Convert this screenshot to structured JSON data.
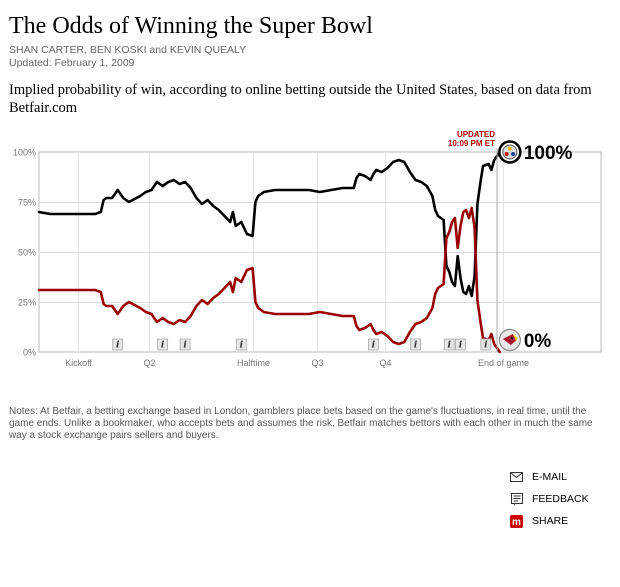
{
  "header": {
    "title": "The Odds of Winning the Super Bowl",
    "byline": "SHAN CARTER, BEN KOSKI and KEVIN QUEALY",
    "updated": "Updated: February 1, 2009",
    "description": "Implied probability of win, according to online betting outside the United States, based on data from Betfair.com"
  },
  "chart_data": {
    "type": "line",
    "y_ticks": [
      "0%",
      "25%",
      "50%",
      "75%",
      "100%"
    ],
    "ylim": [
      0,
      100
    ],
    "xlim": [
      0,
      100
    ],
    "x_labels": [
      {
        "label": "Kickoff",
        "x": 7
      },
      {
        "label": "Q2",
        "x": 19.5
      },
      {
        "label": "Halftime",
        "x": 38
      },
      {
        "label": "Q3",
        "x": 49.5
      },
      {
        "label": "Q4",
        "x": 61.5
      },
      {
        "label": "End of game",
        "x": 82.5
      }
    ],
    "grid": true,
    "update_note": {
      "line1": "UPDATED",
      "line2": "10:09 PM ET",
      "x": 81.5
    },
    "end_labels": {
      "top": "100%",
      "bottom": "0%"
    },
    "team_icons": {
      "top": "steelers-logo-icon",
      "bottom": "cardinals-logo-icon"
    },
    "info_markers": {
      "label": "i",
      "x": [
        14,
        22,
        26,
        36,
        59.5,
        67,
        73,
        75,
        79.5
      ]
    },
    "series": [
      {
        "color": "#000000",
        "points": [
          [
            0,
            70
          ],
          [
            2,
            69
          ],
          [
            4,
            69
          ],
          [
            6,
            69
          ],
          [
            8,
            69
          ],
          [
            10,
            69
          ],
          [
            11,
            70
          ],
          [
            11.5,
            76
          ],
          [
            12,
            77
          ],
          [
            13,
            77
          ],
          [
            14,
            81
          ],
          [
            15,
            77
          ],
          [
            16,
            75
          ],
          [
            18,
            78
          ],
          [
            19,
            80
          ],
          [
            20,
            81
          ],
          [
            21,
            85
          ],
          [
            22,
            83
          ],
          [
            23,
            85
          ],
          [
            24,
            86
          ],
          [
            25,
            84
          ],
          [
            26,
            85
          ],
          [
            27,
            82
          ],
          [
            28,
            77
          ],
          [
            29,
            74
          ],
          [
            30,
            76
          ],
          [
            31,
            73
          ],
          [
            32,
            71
          ],
          [
            33,
            68
          ],
          [
            34,
            65
          ],
          [
            34.5,
            70
          ],
          [
            35,
            63
          ],
          [
            36,
            65
          ],
          [
            37,
            59
          ],
          [
            38,
            58
          ],
          [
            38.5,
            75
          ],
          [
            39,
            78
          ],
          [
            40,
            80
          ],
          [
            42,
            81
          ],
          [
            44,
            81
          ],
          [
            46,
            81
          ],
          [
            48,
            81
          ],
          [
            50,
            80
          ],
          [
            52,
            81
          ],
          [
            54,
            82
          ],
          [
            56,
            82
          ],
          [
            56.5,
            87
          ],
          [
            57,
            89
          ],
          [
            58,
            88
          ],
          [
            59,
            86
          ],
          [
            59.5,
            89
          ],
          [
            60,
            91
          ],
          [
            61,
            90
          ],
          [
            62,
            92
          ],
          [
            63,
            95
          ],
          [
            64,
            96
          ],
          [
            65,
            95
          ],
          [
            66,
            90
          ],
          [
            67,
            86
          ],
          [
            68,
            85
          ],
          [
            69,
            83
          ],
          [
            70,
            78
          ],
          [
            70.5,
            71
          ],
          [
            71,
            68
          ],
          [
            72,
            66
          ],
          [
            72.5,
            43
          ],
          [
            73,
            40
          ],
          [
            73.5,
            35
          ],
          [
            74,
            33
          ],
          [
            74.5,
            48
          ],
          [
            75,
            37
          ],
          [
            75.5,
            30
          ],
          [
            76,
            29
          ],
          [
            76.5,
            33
          ],
          [
            77,
            28
          ],
          [
            77.5,
            38
          ],
          [
            78,
            74
          ],
          [
            78.5,
            84
          ],
          [
            79,
            93
          ],
          [
            80,
            94
          ],
          [
            80.5,
            91
          ],
          [
            81,
            96
          ],
          [
            82,
            100
          ]
        ]
      },
      {
        "color": "#990000",
        "points": [
          [
            0,
            31
          ],
          [
            2,
            31
          ],
          [
            4,
            31
          ],
          [
            6,
            31
          ],
          [
            8,
            31
          ],
          [
            10,
            31
          ],
          [
            11,
            30
          ],
          [
            11.5,
            24
          ],
          [
            12,
            23
          ],
          [
            13,
            23
          ],
          [
            14,
            19
          ],
          [
            15,
            23
          ],
          [
            16,
            25
          ],
          [
            18,
            22
          ],
          [
            19,
            20
          ],
          [
            20,
            19
          ],
          [
            21,
            15
          ],
          [
            22,
            17
          ],
          [
            23,
            15
          ],
          [
            24,
            14
          ],
          [
            25,
            16
          ],
          [
            26,
            15
          ],
          [
            27,
            18
          ],
          [
            28,
            23
          ],
          [
            29,
            26
          ],
          [
            30,
            24
          ],
          [
            31,
            27
          ],
          [
            32,
            29
          ],
          [
            33,
            32
          ],
          [
            34,
            35
          ],
          [
            34.5,
            30
          ],
          [
            35,
            37
          ],
          [
            36,
            35
          ],
          [
            37,
            41
          ],
          [
            38,
            42
          ],
          [
            38.5,
            25
          ],
          [
            39,
            22
          ],
          [
            40,
            20
          ],
          [
            42,
            19
          ],
          [
            44,
            19
          ],
          [
            46,
            19
          ],
          [
            48,
            19
          ],
          [
            50,
            20
          ],
          [
            52,
            19
          ],
          [
            54,
            18
          ],
          [
            56,
            18
          ],
          [
            56.5,
            13
          ],
          [
            57,
            11
          ],
          [
            58,
            12
          ],
          [
            59,
            14
          ],
          [
            59.5,
            11
          ],
          [
            60,
            9
          ],
          [
            61,
            10
          ],
          [
            62,
            8
          ],
          [
            63,
            5
          ],
          [
            64,
            4
          ],
          [
            65,
            5
          ],
          [
            66,
            10
          ],
          [
            67,
            14
          ],
          [
            68,
            15
          ],
          [
            69,
            17
          ],
          [
            70,
            22
          ],
          [
            70.5,
            29
          ],
          [
            71,
            32
          ],
          [
            72,
            34
          ],
          [
            72.5,
            57
          ],
          [
            73,
            60
          ],
          [
            73.5,
            65
          ],
          [
            74,
            67
          ],
          [
            74.5,
            52
          ],
          [
            75,
            63
          ],
          [
            75.5,
            70
          ],
          [
            76,
            71
          ],
          [
            76.5,
            67
          ],
          [
            77,
            72
          ],
          [
            77.5,
            62
          ],
          [
            78,
            26
          ],
          [
            78.5,
            16
          ],
          [
            79,
            7
          ],
          [
            80,
            6
          ],
          [
            80.5,
            9
          ],
          [
            81,
            4
          ],
          [
            82,
            0
          ]
        ]
      }
    ]
  },
  "notes": "Notes: At Betfair, a betting exchange based in London, gamblers place bets based on the game's fluctuations, in real time, until the game ends. Unlike a bookmaker, who accepts bets and assumes the risk, Betfair matches bettors with each other in much the same way a stock exchange pairs sellers and buyers.",
  "tools": {
    "email": {
      "label": "E-MAIL",
      "icon": "envelope-icon"
    },
    "feedback": {
      "label": "FEEDBACK",
      "icon": "feedback-icon"
    },
    "share": {
      "label": "SHARE",
      "icon": "share-icon",
      "color": "#cc0000"
    }
  }
}
